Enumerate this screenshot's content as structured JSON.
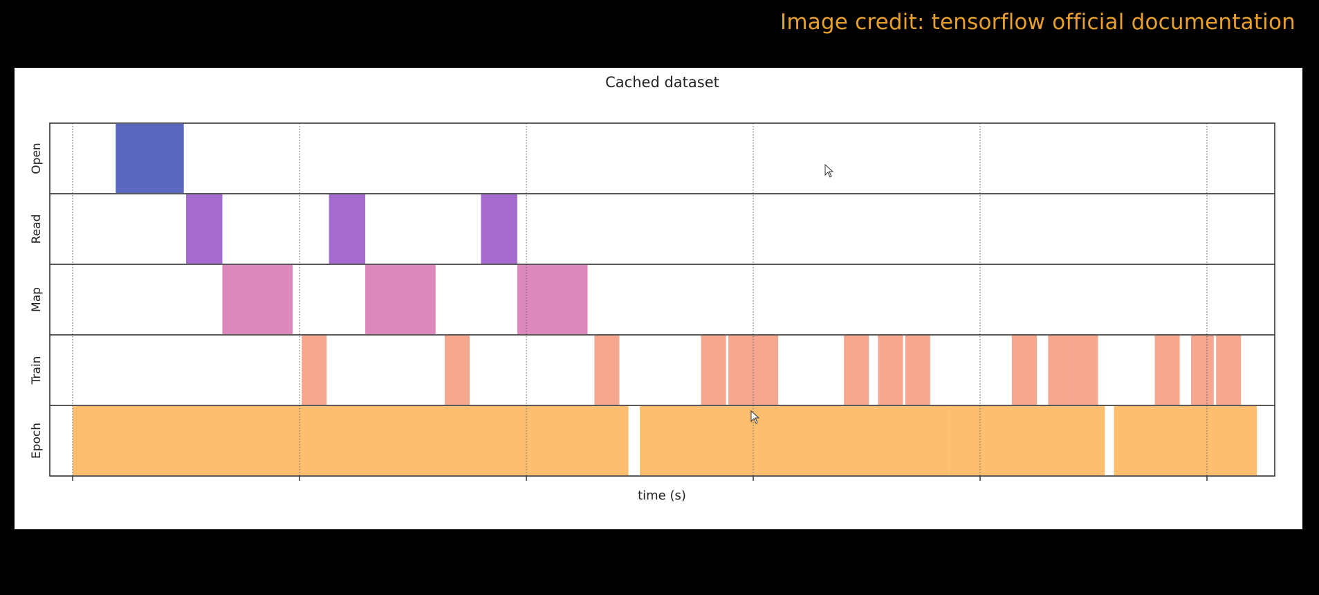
{
  "credit_text": "Image credit: tensorflow official documentation",
  "chart_data": {
    "type": "timeline",
    "title": "Cached dataset",
    "xlabel": "time (s)",
    "ylabel": "",
    "xlim": [
      0,
      5.4
    ],
    "x_tick_positions": [
      0,
      1,
      2,
      3,
      4,
      5
    ],
    "x_tick_labels": [
      "",
      "",
      "",
      "",
      "",
      ""
    ],
    "grid": true,
    "rows": [
      "Open",
      "Read",
      "Map",
      "Train",
      "Epoch"
    ],
    "colors": {
      "Open": "#5b66bd",
      "Read": "#a56ace",
      "Map": "#dc88bc",
      "Train": "#f6a790",
      "Epoch": "#fdbf6f"
    },
    "events": {
      "Open": [
        [
          0.19,
          0.49
        ]
      ],
      "Read": [
        [
          0.5,
          0.66
        ],
        [
          1.13,
          1.29
        ],
        [
          1.8,
          1.96
        ]
      ],
      "Map": [
        [
          0.66,
          0.97
        ],
        [
          1.29,
          1.6
        ],
        [
          1.96,
          2.27
        ]
      ],
      "Train": [
        [
          1.01,
          1.12
        ],
        [
          1.64,
          1.75
        ],
        [
          2.3,
          2.41
        ],
        [
          2.77,
          2.88
        ],
        [
          2.89,
          3.0
        ],
        [
          3.0,
          3.11
        ],
        [
          3.4,
          3.51
        ],
        [
          3.55,
          3.66
        ],
        [
          3.67,
          3.78
        ],
        [
          4.14,
          4.25
        ],
        [
          4.3,
          4.41
        ],
        [
          4.41,
          4.52
        ],
        [
          4.77,
          4.88
        ],
        [
          4.93,
          5.03
        ],
        [
          5.04,
          5.15
        ]
      ],
      "Epoch": [
        [
          0.0,
          2.45
        ],
        [
          2.5,
          3.86
        ],
        [
          3.86,
          4.55
        ],
        [
          4.59,
          5.22
        ]
      ]
    }
  }
}
